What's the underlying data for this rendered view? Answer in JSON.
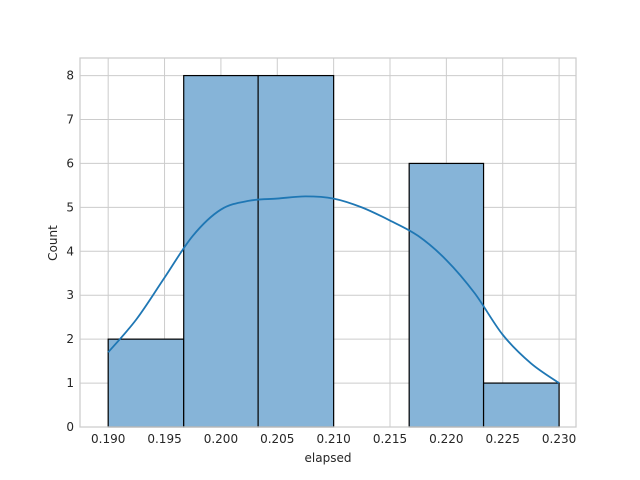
{
  "chart_data": {
    "type": "bar",
    "subtype": "histogram-with-kde",
    "title": "",
    "xlabel": "elapsed",
    "ylabel": "Count",
    "xlim": [
      0.1875,
      0.2315
    ],
    "ylim": [
      0,
      8.4
    ],
    "x_ticks": [
      0.19,
      0.195,
      0.2,
      0.205,
      0.21,
      0.215,
      0.22,
      0.225,
      0.23
    ],
    "x_tick_labels": [
      "0.190",
      "0.195",
      "0.200",
      "0.205",
      "0.210",
      "0.215",
      "0.220",
      "0.225",
      "0.230"
    ],
    "y_ticks": [
      0,
      1,
      2,
      3,
      4,
      5,
      6,
      7,
      8
    ],
    "y_tick_labels": [
      "0",
      "1",
      "2",
      "3",
      "4",
      "5",
      "6",
      "7",
      "8"
    ],
    "grid": true,
    "bins": [
      {
        "x0": 0.19,
        "x1": 0.1967,
        "count": 2
      },
      {
        "x0": 0.1967,
        "x1": 0.2033,
        "count": 8
      },
      {
        "x0": 0.2033,
        "x1": 0.21,
        "count": 8
      },
      {
        "x0": 0.21,
        "x1": 0.2167,
        "count": 0
      },
      {
        "x0": 0.2167,
        "x1": 0.2233,
        "count": 6
      },
      {
        "x0": 0.2233,
        "x1": 0.23,
        "count": 1
      }
    ],
    "kde": {
      "x": [
        0.19,
        0.1925,
        0.195,
        0.1975,
        0.2,
        0.2025,
        0.205,
        0.2075,
        0.21,
        0.2125,
        0.215,
        0.2175,
        0.22,
        0.2225,
        0.225,
        0.2275,
        0.23
      ],
      "y": [
        1.7,
        2.45,
        3.4,
        4.35,
        4.95,
        5.15,
        5.2,
        5.25,
        5.2,
        5.0,
        4.7,
        4.35,
        3.8,
        3.05,
        2.1,
        1.45,
        1.0
      ]
    },
    "colors": {
      "bar_fill": "#86b4d8",
      "bar_edge": "#000000",
      "kde_line": "#1f77b4",
      "grid": "#cccccc",
      "frame": "#cccccc",
      "text": "#262626"
    }
  }
}
